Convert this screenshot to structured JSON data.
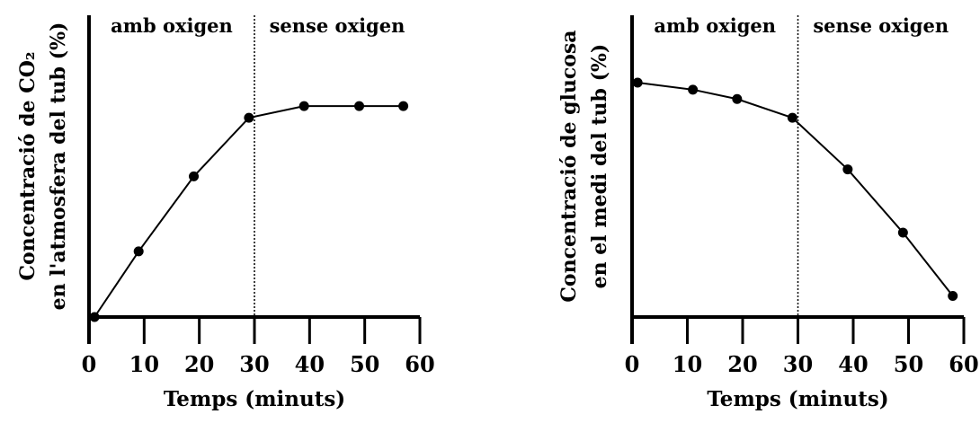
{
  "chart_data": [
    {
      "type": "line",
      "title": "",
      "ylabel_lines": [
        "Concentració de CO₂",
        "en l'atmosfera del tub (%)"
      ],
      "xlabel": "Temps (minuts)",
      "xlim": [
        0,
        60
      ],
      "xticks": [
        "0",
        "10",
        "20",
        "30",
        "40",
        "50",
        "60"
      ],
      "yticks": [],
      "grid": false,
      "regions": [
        "amb oxigen",
        "sense oxigen"
      ],
      "divider_x": 30,
      "series": [
        {
          "x": [
            1,
            9,
            19,
            29,
            39,
            49,
            57
          ],
          "y": [
            0.0,
            0.28,
            0.6,
            0.85,
            0.9,
            0.9,
            0.9
          ]
        }
      ]
    },
    {
      "type": "line",
      "title": "",
      "ylabel_lines": [
        "Concentració de glucosa",
        "en el medi del tub (%)"
      ],
      "xlabel": "Temps (minuts)",
      "xlim": [
        0,
        60
      ],
      "xticks": [
        "0",
        "10",
        "20",
        "30",
        "40",
        "50",
        "60"
      ],
      "yticks": [],
      "grid": false,
      "regions": [
        "amb oxigen",
        "sense oxigen"
      ],
      "divider_x": 30,
      "series": [
        {
          "x": [
            1,
            11,
            19,
            29,
            39,
            49,
            58
          ],
          "y": [
            1.0,
            0.97,
            0.93,
            0.85,
            0.63,
            0.36,
            0.09
          ]
        }
      ]
    }
  ]
}
